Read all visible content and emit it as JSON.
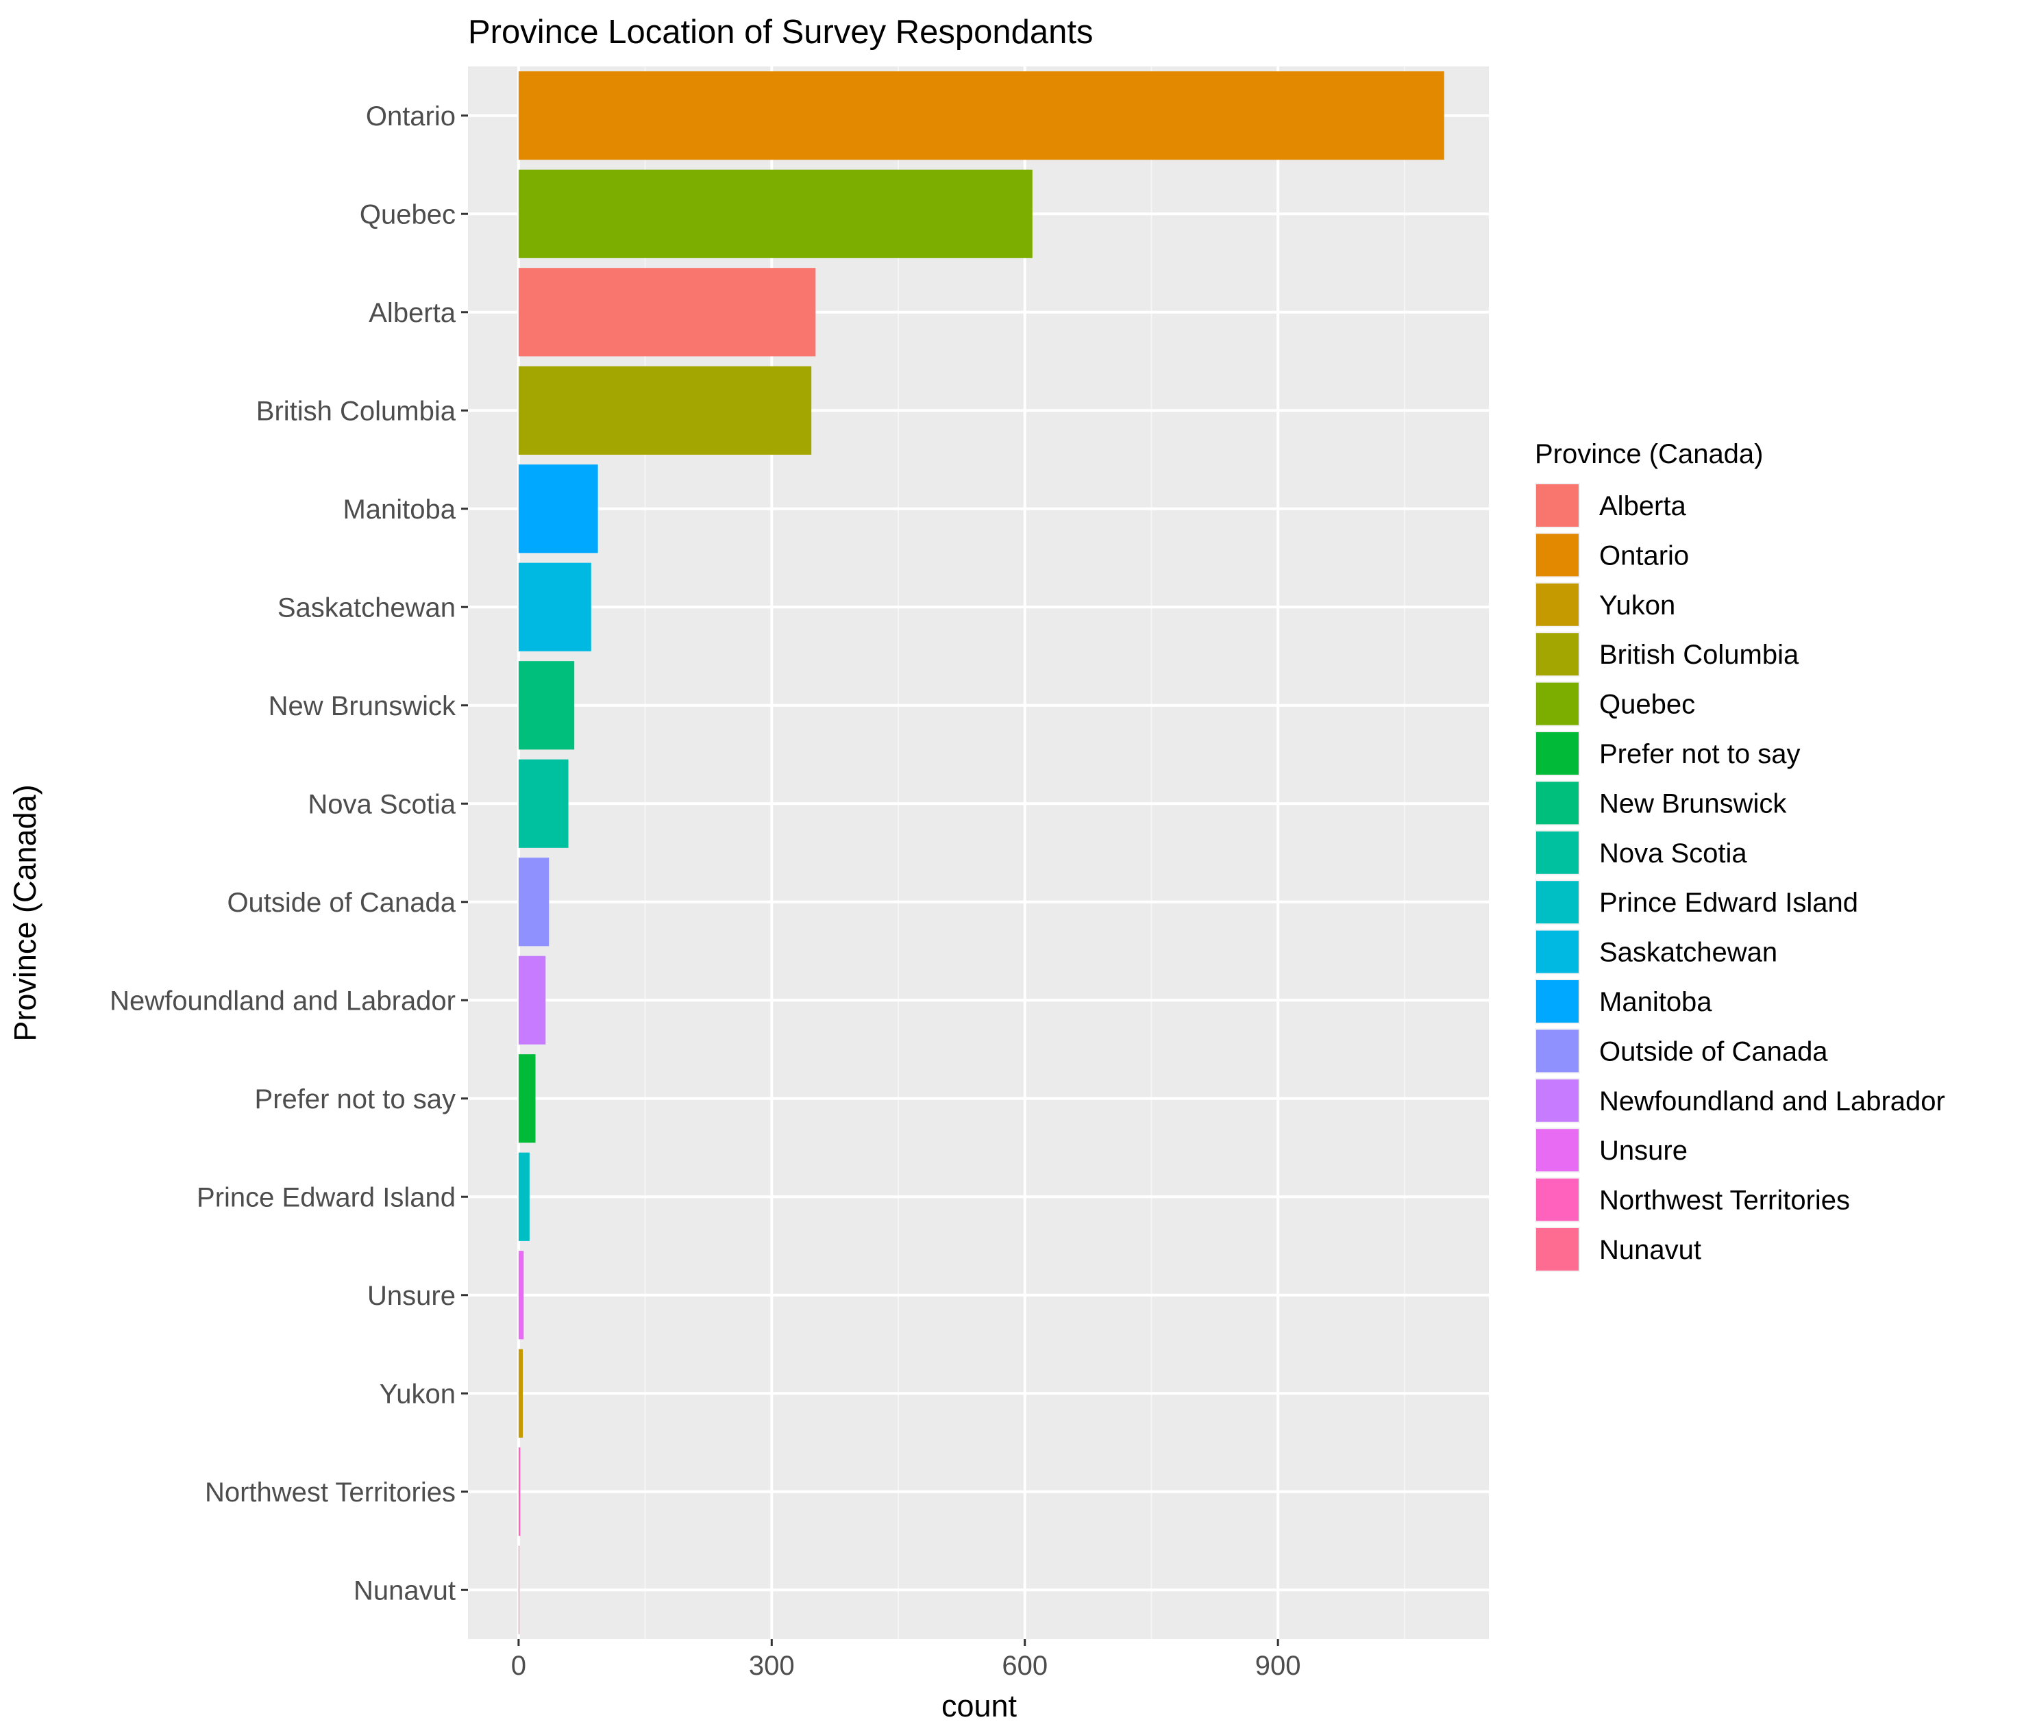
{
  "chart_data": {
    "type": "bar",
    "orientation": "horizontal",
    "title": "Province Location of Survey Respondants",
    "xlabel": "count",
    "ylabel": "Province (Canada)",
    "xlim": [
      -60,
      1150
    ],
    "x_ticks": [
      0,
      300,
      600,
      900
    ],
    "grid": true,
    "legend_title": "Province (Canada)",
    "legend_position": "right",
    "categories": [
      "Ontario",
      "Quebec",
      "Alberta",
      "British Columbia",
      "Manitoba",
      "Saskatchewan",
      "New Brunswick",
      "Nova Scotia",
      "Outside of Canada",
      "Newfoundland and Labrador",
      "Prefer not to say",
      "Prince Edward Island",
      "Unsure",
      "Yukon",
      "Northwest Territories",
      "Nunavut"
    ],
    "values": [
      1097,
      609,
      352,
      347,
      94,
      86,
      66,
      59,
      36,
      32,
      20,
      13,
      6,
      5,
      2,
      1
    ],
    "legend": [
      {
        "label": "Alberta",
        "color": "#F8766D"
      },
      {
        "label": "Ontario",
        "color": "#E38900"
      },
      {
        "label": "Yukon",
        "color": "#C49A00"
      },
      {
        "label": "British Columbia",
        "color": "#A3A500"
      },
      {
        "label": "Quebec",
        "color": "#7CAE00"
      },
      {
        "label": "Prefer not to say",
        "color": "#00BA38"
      },
      {
        "label": "New Brunswick",
        "color": "#00BF7D"
      },
      {
        "label": "Nova Scotia",
        "color": "#00C19F"
      },
      {
        "label": "Prince Edward Island",
        "color": "#00BFC4"
      },
      {
        "label": "Saskatchewan",
        "color": "#00B9E3"
      },
      {
        "label": "Manitoba",
        "color": "#00A9FF"
      },
      {
        "label": "Outside of Canada",
        "color": "#8F91FF"
      },
      {
        "label": "Newfoundland and Labrador",
        "color": "#C77CFF"
      },
      {
        "label": "Unsure",
        "color": "#E76BF3"
      },
      {
        "label": "Northwest Territories",
        "color": "#FF62BC"
      },
      {
        "label": "Nunavut",
        "color": "#FF6C91"
      }
    ],
    "colors": {
      "panel_background": "#EBEBEB",
      "grid_major": "#FFFFFF",
      "grid_minor": "#F5F5F5",
      "tick_text": "#4D4D4D",
      "tick_mark": "#333333"
    }
  }
}
